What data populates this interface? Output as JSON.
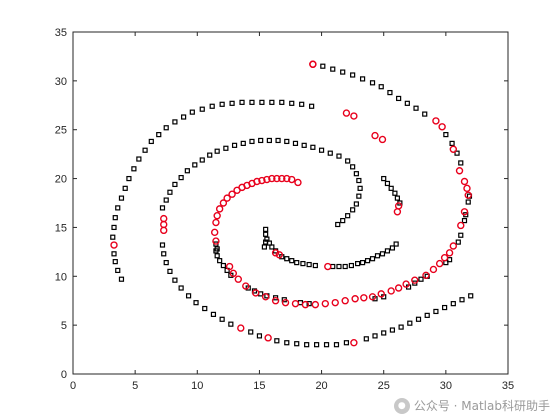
{
  "chart_data": {
    "type": "scatter",
    "xlim": [
      0,
      35
    ],
    "ylim": [
      0,
      35
    ],
    "xticks": [
      0,
      5,
      10,
      15,
      20,
      25,
      30,
      35
    ],
    "yticks": [
      0,
      5,
      10,
      15,
      20,
      25,
      30,
      35
    ],
    "grid": false,
    "legend": "none",
    "series": [
      {
        "marker": "square",
        "color": "#000000",
        "points": [
          [
            3.9,
            9.7
          ],
          [
            3.6,
            10.6
          ],
          [
            3.4,
            11.5
          ],
          [
            3.3,
            12.3
          ],
          [
            3.2,
            14.0
          ],
          [
            3.3,
            15.0
          ],
          [
            3.4,
            16.0
          ],
          [
            3.6,
            17.0
          ],
          [
            3.9,
            18.0
          ],
          [
            4.2,
            19.0
          ],
          [
            4.5,
            20.0
          ],
          [
            4.9,
            21.0
          ],
          [
            5.3,
            22.0
          ],
          [
            5.8,
            22.9
          ],
          [
            6.3,
            23.8
          ],
          [
            6.9,
            24.5
          ],
          [
            7.5,
            25.2
          ],
          [
            8.2,
            25.8
          ],
          [
            8.9,
            26.3
          ],
          [
            9.6,
            26.8
          ],
          [
            10.4,
            27.1
          ],
          [
            11.2,
            27.4
          ],
          [
            12.0,
            27.6
          ],
          [
            12.8,
            27.7
          ],
          [
            13.6,
            27.8
          ],
          [
            14.4,
            27.8
          ],
          [
            15.2,
            27.8
          ],
          [
            16.0,
            27.8
          ],
          [
            16.8,
            27.8
          ],
          [
            17.6,
            27.7
          ],
          [
            18.4,
            27.6
          ],
          [
            19.2,
            27.4
          ],
          [
            20.1,
            31.5
          ],
          [
            20.9,
            31.2
          ],
          [
            21.7,
            30.9
          ],
          [
            22.5,
            30.6
          ],
          [
            23.3,
            30.2
          ],
          [
            24.1,
            29.8
          ],
          [
            24.8,
            29.4
          ],
          [
            25.5,
            28.8
          ],
          [
            26.2,
            28.2
          ],
          [
            26.9,
            27.7
          ],
          [
            27.6,
            27.2
          ],
          [
            28.3,
            26.6
          ],
          [
            30.0,
            24.5
          ],
          [
            30.5,
            23.6
          ],
          [
            30.9,
            22.6
          ],
          [
            31.2,
            21.6
          ],
          [
            32.0,
            8.0
          ],
          [
            31.3,
            7.6
          ],
          [
            30.6,
            7.2
          ],
          [
            29.9,
            6.8
          ],
          [
            29.2,
            6.4
          ],
          [
            28.5,
            6.0
          ],
          [
            27.8,
            5.6
          ],
          [
            27.1,
            5.2
          ],
          [
            26.4,
            4.8
          ],
          [
            25.7,
            4.5
          ],
          [
            25.0,
            4.2
          ],
          [
            24.3,
            3.9
          ],
          [
            23.6,
            3.6
          ],
          [
            22.0,
            3.2
          ],
          [
            21.2,
            3.0
          ],
          [
            20.4,
            3.0
          ],
          [
            19.6,
            3.0
          ],
          [
            18.8,
            3.0
          ],
          [
            18.0,
            3.1
          ],
          [
            17.2,
            3.2
          ],
          [
            16.4,
            3.4
          ],
          [
            15.0,
            3.9
          ],
          [
            14.3,
            4.3
          ],
          [
            12.7,
            5.1
          ],
          [
            12.0,
            5.6
          ],
          [
            11.3,
            6.1
          ],
          [
            10.6,
            6.7
          ],
          [
            9.9,
            7.3
          ],
          [
            9.3,
            8.0
          ],
          [
            8.7,
            8.8
          ],
          [
            8.2,
            9.6
          ],
          [
            7.8,
            10.5
          ],
          [
            7.5,
            11.4
          ],
          [
            7.3,
            12.3
          ],
          [
            7.2,
            13.2
          ],
          [
            7.2,
            17.0
          ],
          [
            7.5,
            17.8
          ],
          [
            7.8,
            18.6
          ],
          [
            8.2,
            19.4
          ],
          [
            8.7,
            20.1
          ],
          [
            9.2,
            20.8
          ],
          [
            9.8,
            21.4
          ],
          [
            10.4,
            21.9
          ],
          [
            11.0,
            22.4
          ],
          [
            11.6,
            22.8
          ],
          [
            12.3,
            23.1
          ],
          [
            13.0,
            23.4
          ],
          [
            13.7,
            23.6
          ],
          [
            14.4,
            23.8
          ],
          [
            15.1,
            23.9
          ],
          [
            15.8,
            23.9
          ],
          [
            16.5,
            23.9
          ],
          [
            17.2,
            23.8
          ],
          [
            17.9,
            23.6
          ],
          [
            18.6,
            23.4
          ],
          [
            19.3,
            23.2
          ],
          [
            20.0,
            22.9
          ],
          [
            20.7,
            22.6
          ],
          [
            21.4,
            22.3
          ],
          [
            22.1,
            21.8
          ],
          [
            22.5,
            21.2
          ],
          [
            22.8,
            20.5
          ],
          [
            23.0,
            19.8
          ],
          [
            23.1,
            19.0
          ],
          [
            23.0,
            18.2
          ],
          [
            22.8,
            17.4
          ],
          [
            22.5,
            16.8
          ],
          [
            22.1,
            16.2
          ],
          [
            21.7,
            15.7
          ],
          [
            21.3,
            15.3
          ],
          [
            25.0,
            20.0
          ],
          [
            25.3,
            19.5
          ],
          [
            25.6,
            19.0
          ],
          [
            25.9,
            18.5
          ],
          [
            26.1,
            18.0
          ],
          [
            26.3,
            17.5
          ],
          [
            26.0,
            13.3
          ],
          [
            25.7,
            12.9
          ],
          [
            25.3,
            12.6
          ],
          [
            24.9,
            12.3
          ],
          [
            24.5,
            12.1
          ],
          [
            24.1,
            11.8
          ],
          [
            23.7,
            11.6
          ],
          [
            23.3,
            11.4
          ],
          [
            22.9,
            11.3
          ],
          [
            22.4,
            11.1
          ],
          [
            21.9,
            11.0
          ],
          [
            21.4,
            11.0
          ],
          [
            20.9,
            11.0
          ],
          [
            19.5,
            11.1
          ],
          [
            19.0,
            11.2
          ],
          [
            18.5,
            11.3
          ],
          [
            18.0,
            11.4
          ],
          [
            17.6,
            11.6
          ],
          [
            17.2,
            11.8
          ],
          [
            16.8,
            12.0
          ],
          [
            16.3,
            12.6
          ],
          [
            16.0,
            13.0
          ],
          [
            15.8,
            13.4
          ],
          [
            15.6,
            13.8
          ],
          [
            15.5,
            14.3
          ],
          [
            15.5,
            14.8
          ],
          [
            15.4,
            13.0
          ],
          [
            15.5,
            13.5
          ],
          [
            11.6,
            12.8
          ],
          [
            11.5,
            13.3
          ],
          [
            11.5,
            12.6
          ],
          [
            11.6,
            12.1
          ],
          [
            11.8,
            11.6
          ],
          [
            12.1,
            11.1
          ],
          [
            12.4,
            10.6
          ],
          [
            12.7,
            10.1
          ],
          [
            14.1,
            8.8
          ],
          [
            14.6,
            8.5
          ],
          [
            15.1,
            8.2
          ],
          [
            15.6,
            8.0
          ],
          [
            16.3,
            7.8
          ],
          [
            17.0,
            7.6
          ],
          [
            18.3,
            7.3
          ],
          [
            19.0,
            7.2
          ],
          [
            24.3,
            7.7
          ],
          [
            25.0,
            7.9
          ],
          [
            27.0,
            8.9
          ],
          [
            27.5,
            9.3
          ],
          [
            28.0,
            9.7
          ],
          [
            28.5,
            10.0
          ],
          [
            30.0,
            11.4
          ],
          [
            30.3,
            11.7
          ],
          [
            31.0,
            13.5
          ],
          [
            31.2,
            14.2
          ],
          [
            31.5,
            15.7
          ],
          [
            31.6,
            16.3
          ],
          [
            31.9,
            18.2
          ],
          [
            31.8,
            17.6
          ]
        ]
      },
      {
        "marker": "circle",
        "color": "#e8001c",
        "points": [
          [
            19.3,
            31.7
          ],
          [
            29.2,
            25.9
          ],
          [
            29.7,
            25.3
          ],
          [
            30.6,
            23.0
          ],
          [
            31.1,
            20.8
          ],
          [
            31.5,
            19.7
          ],
          [
            31.7,
            19.0
          ],
          [
            31.8,
            18.3
          ],
          [
            31.5,
            16.6
          ],
          [
            31.2,
            15.2
          ],
          [
            30.6,
            13.1
          ],
          [
            30.3,
            12.4
          ],
          [
            29.9,
            11.9
          ],
          [
            29.5,
            11.3
          ],
          [
            29.0,
            10.7
          ],
          [
            28.4,
            10.1
          ],
          [
            27.5,
            9.6
          ],
          [
            26.8,
            9.2
          ],
          [
            26.2,
            8.8
          ],
          [
            25.6,
            8.5
          ],
          [
            24.8,
            8.2
          ],
          [
            24.1,
            7.9
          ],
          [
            23.4,
            7.8
          ],
          [
            22.7,
            7.7
          ],
          [
            21.9,
            7.5
          ],
          [
            21.1,
            7.3
          ],
          [
            20.3,
            7.2
          ],
          [
            19.5,
            7.1
          ],
          [
            18.7,
            7.1
          ],
          [
            17.9,
            7.2
          ],
          [
            17.1,
            7.3
          ],
          [
            16.3,
            7.5
          ],
          [
            15.5,
            7.9
          ],
          [
            14.7,
            8.3
          ],
          [
            13.9,
            9.0
          ],
          [
            13.3,
            9.7
          ],
          [
            12.9,
            10.3
          ],
          [
            12.6,
            11.0
          ],
          [
            11.5,
            13.6
          ],
          [
            11.4,
            14.5
          ],
          [
            11.5,
            15.5
          ],
          [
            11.6,
            16.2
          ],
          [
            11.8,
            16.9
          ],
          [
            12.1,
            17.5
          ],
          [
            12.4,
            18.0
          ],
          [
            12.8,
            18.4
          ],
          [
            13.2,
            18.8
          ],
          [
            13.6,
            19.1
          ],
          [
            14.0,
            19.3
          ],
          [
            14.4,
            19.5
          ],
          [
            14.8,
            19.7
          ],
          [
            15.2,
            19.8
          ],
          [
            15.6,
            19.9
          ],
          [
            16.0,
            20.0
          ],
          [
            16.4,
            20.0
          ],
          [
            16.8,
            20.0
          ],
          [
            17.2,
            20.0
          ],
          [
            17.6,
            19.9
          ],
          [
            18.1,
            19.6
          ],
          [
            16.3,
            12.4
          ],
          [
            16.6,
            12.2
          ],
          [
            20.5,
            11.0
          ],
          [
            22.6,
            3.2
          ],
          [
            15.7,
            3.7
          ],
          [
            13.5,
            4.7
          ],
          [
            7.3,
            14.7
          ],
          [
            7.3,
            15.3
          ],
          [
            7.3,
            15.9
          ],
          [
            3.3,
            13.2
          ],
          [
            24.3,
            24.4
          ],
          [
            24.9,
            24.0
          ],
          [
            26.2,
            17.2
          ],
          [
            26.1,
            16.6
          ],
          [
            22.6,
            26.4
          ],
          [
            22.0,
            26.7
          ],
          [
            19.3,
            31.7
          ]
        ]
      }
    ]
  },
  "watermark": {
    "text": "公众号 · Matlab科研助手"
  },
  "colors": {
    "axis": "#262626",
    "background": "#ffffff",
    "series_black": "#000000",
    "series_red": "#e8001c"
  }
}
